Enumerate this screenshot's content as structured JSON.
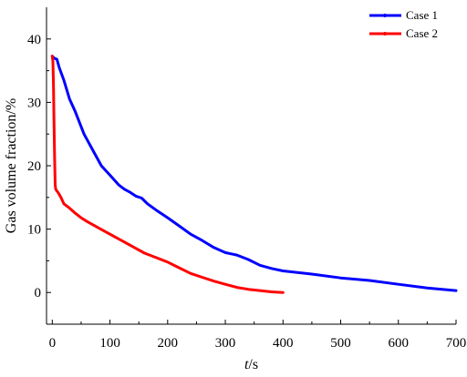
{
  "chart_data": {
    "type": "line",
    "title": "",
    "xlabel_var": "t",
    "xlabel_unit": "/s",
    "ylabel": "Gas volume fraction/%",
    "xlim": [
      -10,
      700
    ],
    "ylim": [
      -5,
      45
    ],
    "xticks": [
      0,
      100,
      200,
      300,
      400,
      500,
      600,
      700
    ],
    "yticks": [
      0,
      10,
      20,
      30,
      40
    ],
    "grid": false,
    "legend_position": "top-right",
    "series": [
      {
        "name": "Case 1",
        "color": "#0000ff",
        "x": [
          0,
          3,
          8,
          12,
          20,
          30,
          40,
          55,
          70,
          85,
          100,
          115,
          125,
          135,
          145,
          155,
          165,
          180,
          200,
          220,
          240,
          260,
          280,
          300,
          320,
          340,
          360,
          380,
          400,
          450,
          500,
          550,
          600,
          650,
          700
        ],
        "y": [
          37.3,
          37.0,
          36.8,
          35.5,
          33.5,
          30.5,
          28.5,
          25.0,
          22.5,
          20.0,
          18.5,
          17.0,
          16.3,
          15.8,
          15.2,
          14.9,
          14.0,
          13.0,
          11.8,
          10.5,
          9.2,
          8.2,
          7.1,
          6.3,
          5.9,
          5.2,
          4.3,
          3.8,
          3.4,
          2.9,
          2.3,
          1.9,
          1.3,
          0.7,
          0.3
        ]
      },
      {
        "name": "Case 2",
        "color": "#ff0000",
        "x": [
          0,
          1,
          2,
          3,
          4,
          5,
          6,
          8,
          10,
          15,
          20,
          30,
          40,
          50,
          60,
          80,
          100,
          120,
          140,
          160,
          180,
          200,
          220,
          240,
          260,
          280,
          300,
          320,
          340,
          360,
          380,
          400
        ],
        "y": [
          37.3,
          36.5,
          33.0,
          27.0,
          21.0,
          17.0,
          16.3,
          16.0,
          15.8,
          15.0,
          14.0,
          13.3,
          12.5,
          11.8,
          11.2,
          10.2,
          9.2,
          8.2,
          7.2,
          6.2,
          5.5,
          4.8,
          3.9,
          3.0,
          2.4,
          1.8,
          1.3,
          0.8,
          0.5,
          0.3,
          0.1,
          0.0
        ]
      }
    ]
  }
}
